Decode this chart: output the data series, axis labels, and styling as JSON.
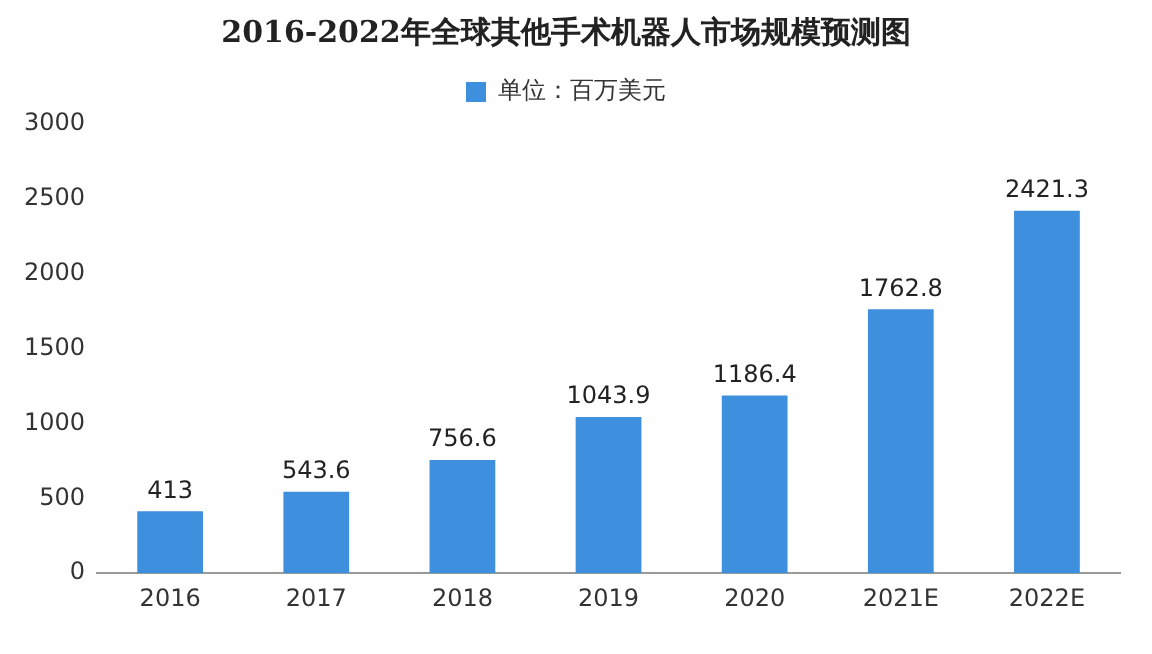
{
  "chart_data": {
    "type": "bar",
    "title": "2016-2022年全球其他手术机器人市场规模预测图",
    "categories": [
      "2016",
      "2017",
      "2018",
      "2019",
      "2020",
      "2021E",
      "2022E"
    ],
    "series": [
      {
        "name": "单位：百万美元",
        "color": "#3f8fdf",
        "values": [
          413,
          543.6,
          756.6,
          1043.9,
          1186.4,
          1762.8,
          2421.3
        ]
      }
    ],
    "ylim": [
      0,
      3000
    ],
    "yticks": [
      0,
      500,
      1000,
      1500,
      2000,
      2500,
      3000
    ],
    "grid": false,
    "legend": "top",
    "data_labels": true
  }
}
